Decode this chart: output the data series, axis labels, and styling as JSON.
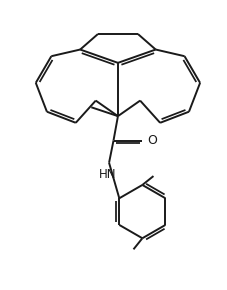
{
  "background_color": "#ffffff",
  "line_color": "#1a1a1a",
  "line_width": 1.4,
  "figsize": [
    2.27,
    2.9
  ],
  "dpi": 100,
  "xlim": [
    0,
    10
  ],
  "ylim": [
    0,
    13
  ]
}
